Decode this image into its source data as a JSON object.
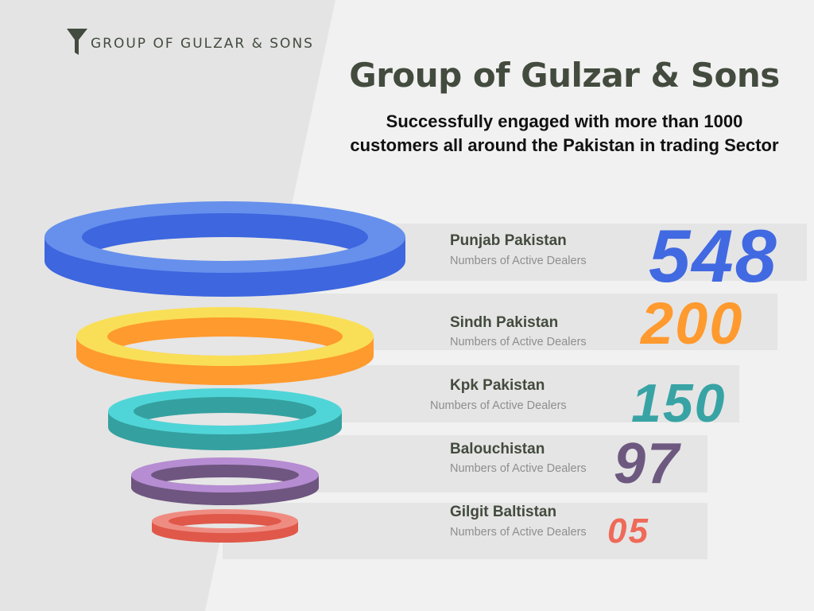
{
  "brand": {
    "logo_icon": "funnel-icon",
    "name": "GROUP OF GULZAR & SONS"
  },
  "header": {
    "title": "Group of Gulzar & Sons",
    "subtitle": "Successfully engaged with more than 1000 customers all around the Pakistan in trading Sector"
  },
  "colors": {
    "text_dark": "#434b3e",
    "background": "#f0f1f0",
    "panel": "#e5e5e5"
  },
  "regions": [
    {
      "name": "Punjab Pakistan",
      "caption": "Numbers of Active Dealers",
      "value": "548",
      "color": "#4169e1",
      "ring_top": "#6690ec",
      "ring_side": "#3d66df"
    },
    {
      "name": "Sindh Pakistan",
      "caption": "Numbers of Active Dealers",
      "value": "200",
      "color": "#ff9a2e",
      "ring_top": "#f9df57",
      "ring_side": "#ff9a2e"
    },
    {
      "name": "Kpk Pakistan",
      "caption": "Numbers of Active Dealers",
      "value": "150",
      "color": "#38a3a4",
      "ring_top": "#4fd5d7",
      "ring_side": "#35a0a0"
    },
    {
      "name": "Balouchistan",
      "caption": "Numbers of Active Dealers",
      "value": "97",
      "color": "#6d5980",
      "ring_top": "#b68cd2",
      "ring_side": "#6e5680"
    },
    {
      "name": "Gilgit Baltistan",
      "caption": "Numbers of Active Dealers",
      "value": "05",
      "color": "#ef6a59",
      "ring_top": "#ef8c82",
      "ring_side": "#e0584a"
    }
  ]
}
